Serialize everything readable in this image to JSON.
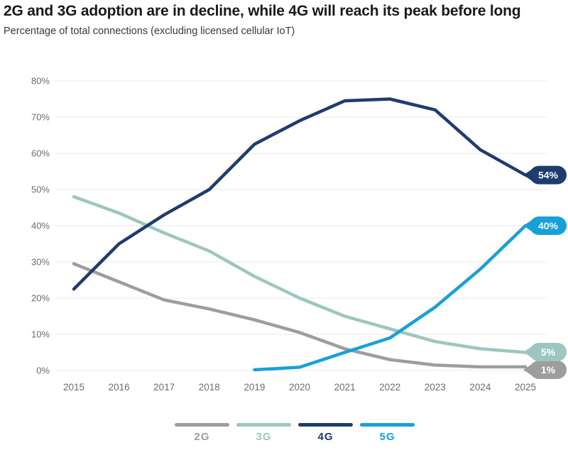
{
  "header": {
    "title": "2G and 3G adoption are in decline, while 4G will reach its peak before long",
    "subtitle": "Percentage of total connections (excluding licensed cellular IoT)"
  },
  "colors": {
    "title_text": "#191919",
    "subtitle_text": "#3a3a3a",
    "axis_text": "#6d6d6d",
    "gridline": "#e8e8e8",
    "pill_text": "#ffffff"
  },
  "chart_data": {
    "type": "line",
    "x": [
      2015,
      2016,
      2017,
      2018,
      2019,
      2020,
      2021,
      2022,
      2023,
      2024,
      2025
    ],
    "series": [
      {
        "name": "2G",
        "color": "#9d9d9c",
        "values": [
          29.5,
          24.5,
          19.5,
          17,
          14,
          10.5,
          6,
          3,
          1.5,
          1,
          1
        ],
        "end_label": "1%",
        "end_label_at": 0.2
      },
      {
        "name": "3G",
        "color": "#9cc6bf",
        "values": [
          48,
          43.5,
          38,
          33,
          26,
          20,
          15,
          11.5,
          8,
          6,
          5
        ],
        "end_label": "5%",
        "end_label_at": 5.1
      },
      {
        "name": "4G",
        "color": "#1e3c6e",
        "values": [
          22.5,
          35,
          43,
          50,
          62.5,
          69,
          74.5,
          75,
          72,
          61,
          54
        ],
        "end_label": "54%",
        "end_label_at": 54
      },
      {
        "name": "5G",
        "color": "#16a1db",
        "values": [
          null,
          null,
          null,
          null,
          0.2,
          0.9,
          5,
          9,
          17.5,
          28,
          40
        ],
        "end_label": "40%",
        "end_label_at": 40
      }
    ],
    "ylim": [
      0,
      80
    ],
    "ytick_step": 10,
    "ytick_suffix": "%",
    "grid": true,
    "legend_position": "bottom",
    "title": "2G and 3G adoption are in decline, while 4G will reach its peak before long",
    "xlabel": "",
    "ylabel": ""
  }
}
